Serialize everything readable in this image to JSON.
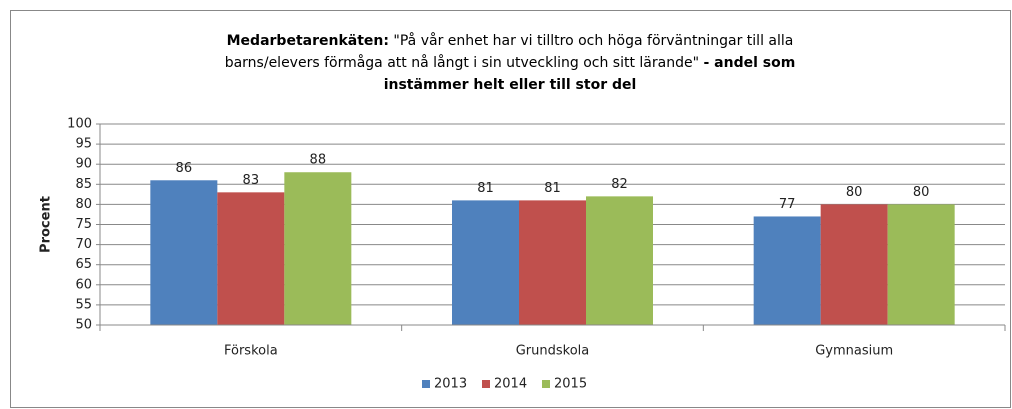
{
  "chart_data": {
    "type": "bar",
    "title": [
      {
        "text": "Medarbetarenkäten:",
        "bold": true
      },
      {
        "text": "\"På vår enhet har vi tilltro och höga förväntningar till alla barns/elevers förmåga att nå långt i sin utveckling och sitt lärande\"",
        "bold": false
      },
      {
        "text": "- andel som instämmer helt eller till stor del",
        "bold": true
      }
    ],
    "y_label": "Procent",
    "categories": [
      "Förskola",
      "Grundskola",
      "Gymnasium"
    ],
    "series": [
      {
        "name": "2013",
        "color": "#4f81bd",
        "values": [
          86,
          81,
          77
        ]
      },
      {
        "name": "2014",
        "color": "#c0504d",
        "values": [
          83,
          81,
          80
        ]
      },
      {
        "name": "2015",
        "color": "#9bbb59",
        "values": [
          88,
          82,
          80
        ]
      }
    ],
    "ylim": [
      50,
      100
    ],
    "yticks": [
      50,
      55,
      60,
      65,
      70,
      75,
      80,
      85,
      90,
      95,
      100
    ],
    "grid": true,
    "legend": "bottom"
  }
}
